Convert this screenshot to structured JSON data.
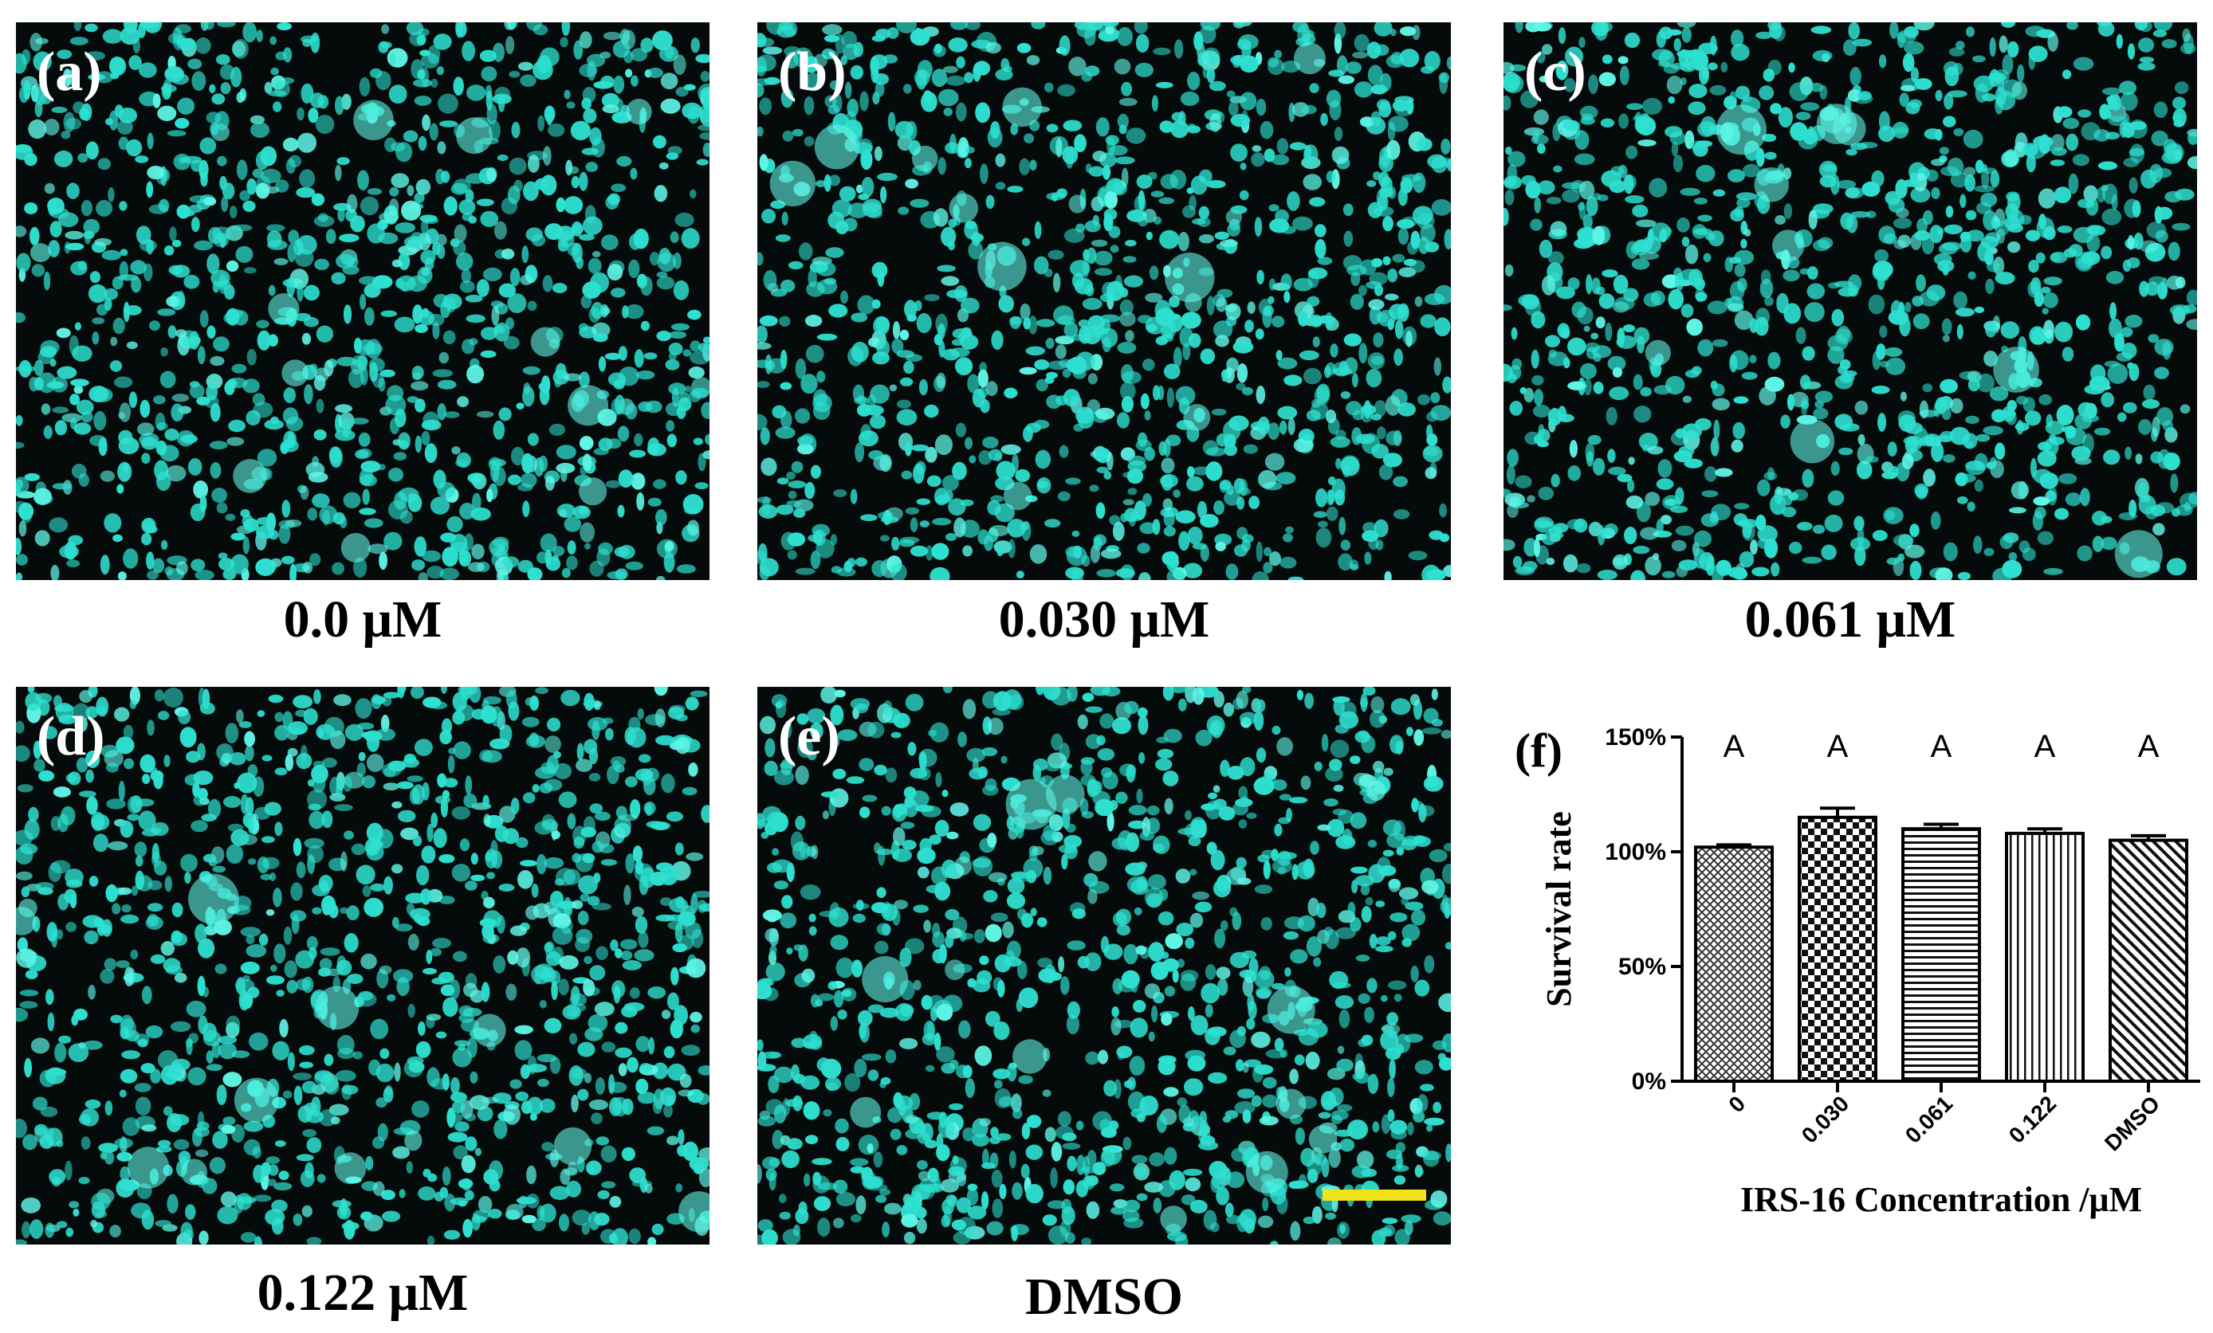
{
  "panels": [
    {
      "label": "(a)",
      "caption": "0.0 μM"
    },
    {
      "label": "(b)",
      "caption": "0.030 μM"
    },
    {
      "label": "(c)",
      "caption": "0.061 μM"
    },
    {
      "label": "(d)",
      "caption": "0.122 μM"
    },
    {
      "label": "(e)",
      "caption": "DMSO"
    }
  ],
  "colors": {
    "cell": "#2ee0d0",
    "cell_bright": "#5ff5e6",
    "background": "#050a0a",
    "scale_bar": "#f2e21a"
  },
  "chart_data": {
    "type": "bar",
    "panel_label": "(f)",
    "categories": [
      "0",
      "0.030",
      "0.061",
      "0.122",
      "DMSO"
    ],
    "values": [
      1.02,
      1.15,
      1.1,
      1.08,
      1.05
    ],
    "errors": [
      0.01,
      0.04,
      0.02,
      0.02,
      0.02
    ],
    "significance_letters": [
      "A",
      "A",
      "A",
      "A",
      "A"
    ],
    "yticks": [
      "0%",
      "50%",
      "100%",
      "150%"
    ],
    "ytick_values": [
      0,
      0.5,
      1.0,
      1.5
    ],
    "ylim": [
      0,
      1.5
    ],
    "xlabel": "IRS-16 Concentration /μM",
    "ylabel": "Survival rate",
    "bar_patterns": [
      "crosshatch",
      "checker",
      "horizontal",
      "vertical",
      "diagonal"
    ]
  }
}
